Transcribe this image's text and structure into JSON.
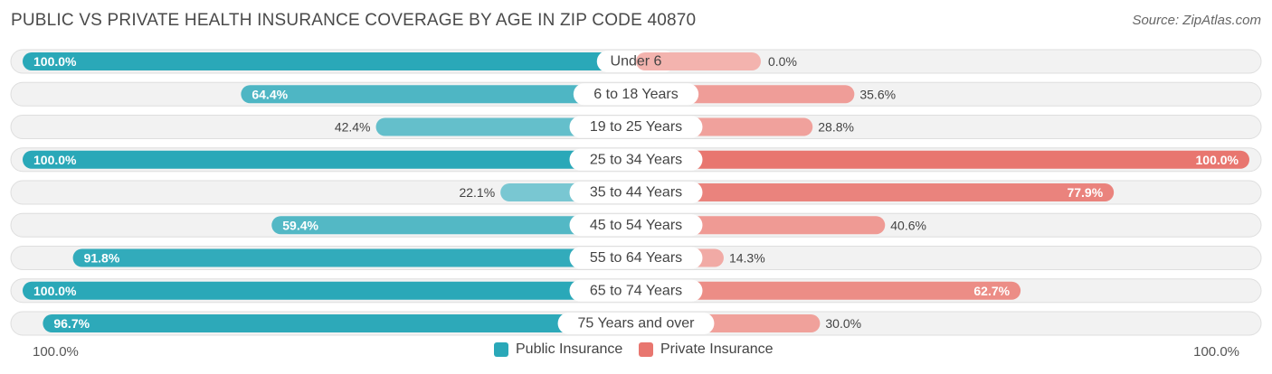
{
  "title": "PUBLIC VS PRIVATE HEALTH INSURANCE COVERAGE BY AGE IN ZIP CODE 40870",
  "source": "Source: ZipAtlas.com",
  "colors": {
    "public_strong": "#2aa8b8",
    "public_light": "#8fd0d9",
    "private_strong": "#e8766f",
    "private_light": "#f3b3ae",
    "row_bg": "#f2f2f2",
    "row_border": "#dedede"
  },
  "legend": {
    "public_label": "Public Insurance",
    "private_label": "Private Insurance"
  },
  "axis": {
    "left_label": "100.0%",
    "right_label": "100.0%"
  },
  "chart_data": {
    "type": "bar",
    "orientation": "horizontal-diverging",
    "title": "PUBLIC VS PRIVATE HEALTH INSURANCE COVERAGE BY AGE IN ZIP CODE 40870",
    "categories": [
      "Under 6",
      "6 to 18 Years",
      "19 to 25 Years",
      "25 to 34 Years",
      "35 to 44 Years",
      "45 to 54 Years",
      "55 to 64 Years",
      "65 to 74 Years",
      "75 Years and over"
    ],
    "series": [
      {
        "name": "Public Insurance",
        "values": [
          100.0,
          64.4,
          42.4,
          100.0,
          22.1,
          59.4,
          91.8,
          100.0,
          96.7
        ],
        "labels": [
          "100.0%",
          "64.4%",
          "42.4%",
          "100.0%",
          "22.1%",
          "59.4%",
          "91.8%",
          "100.0%",
          "96.7%"
        ]
      },
      {
        "name": "Private Insurance",
        "values": [
          0.0,
          35.6,
          28.8,
          100.0,
          77.9,
          40.6,
          14.3,
          62.7,
          30.0
        ],
        "labels": [
          "0.0%",
          "35.6%",
          "28.8%",
          "100.0%",
          "77.9%",
          "40.6%",
          "14.3%",
          "62.7%",
          "30.0%"
        ]
      }
    ],
    "xlim": [
      -100,
      100
    ],
    "legend_position": "bottom-center"
  }
}
